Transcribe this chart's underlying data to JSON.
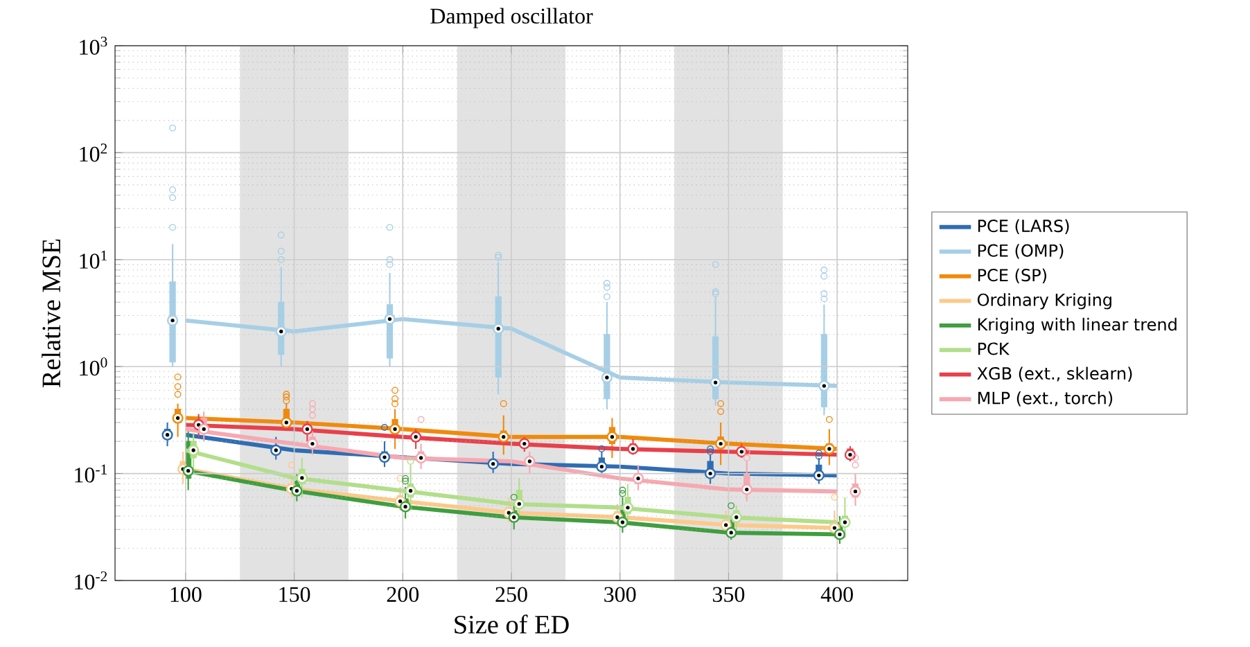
{
  "chart_data": {
    "type": "line",
    "title": "Damped oscillator",
    "xlabel": "Size of ED",
    "ylabel": "Relative MSE",
    "x": [
      100,
      150,
      200,
      250,
      300,
      350,
      400
    ],
    "xlim": [
      67.5,
      432.5
    ],
    "xticks": [
      100,
      150,
      200,
      250,
      300,
      350,
      400
    ],
    "ylim": [
      0.01,
      1000
    ],
    "yticks": [
      {
        "value": 0.01,
        "label": "10$^{-2}$"
      },
      {
        "value": 0.1,
        "label": "10$^{-1}$"
      },
      {
        "value": 1,
        "label": "10$^{0}$"
      },
      {
        "value": 10,
        "label": "10$^{1}$"
      },
      {
        "value": 100,
        "label": "10$^{2}$"
      },
      {
        "value": 1000,
        "label": "10$^{3}$"
      }
    ],
    "log": "y",
    "grid": true,
    "legend": "right",
    "bands": [
      {
        "axis": "x",
        "from": 125,
        "to": 175,
        "color": "#e2e2e2"
      },
      {
        "axis": "x",
        "from": 225,
        "to": 275,
        "color": "#e2e2e2"
      },
      {
        "axis": "x",
        "from": 325,
        "to": 375,
        "color": "#e2e2e2"
      }
    ],
    "series": [
      {
        "name": "PCE (LARS)",
        "color": "#2f6db3",
        "values": [
          0.23,
          0.165,
          0.142,
          0.123,
          0.116,
          0.1,
          0.096
        ]
      },
      {
        "type": "box",
        "color": "#2f6db3",
        "boxes": [
          {
            "low": 0.18,
            "q1": 0.21,
            "median": 0.23,
            "q3": 0.26,
            "high": 0.3
          },
          {
            "low": 0.135,
            "q1": 0.155,
            "median": 0.165,
            "q3": 0.18,
            "high": 0.22
          },
          {
            "low": 0.115,
            "q1": 0.13,
            "median": 0.142,
            "q3": 0.16,
            "high": 0.2,
            "outliers": [
              0.27
            ]
          },
          {
            "low": 0.1,
            "q1": 0.115,
            "median": 0.123,
            "q3": 0.135,
            "high": 0.16
          },
          {
            "low": 0.095,
            "q1": 0.108,
            "median": 0.116,
            "q3": 0.14,
            "high": 0.16,
            "outliers": [
              0.17
            ]
          },
          {
            "low": 0.08,
            "q1": 0.095,
            "median": 0.1,
            "q3": 0.13,
            "high": 0.15,
            "outliers": [
              0.16,
              0.17
            ]
          },
          {
            "low": 0.08,
            "q1": 0.09,
            "median": 0.096,
            "q3": 0.12,
            "high": 0.14,
            "outliers": [
              0.145,
              0.155
            ]
          }
        ]
      },
      {
        "name": "PCE (OMP)",
        "color": "#a6cfe6",
        "values": [
          2.7,
          2.13,
          2.78,
          2.26,
          0.79,
          0.71,
          0.66
        ]
      },
      {
        "type": "box",
        "color": "#a6cfe6",
        "boxes": [
          {
            "low": 1.0,
            "q1": 1.1,
            "median": 2.7,
            "q3": 6.2,
            "high": 14,
            "outliers": [
              20,
              38,
              45,
              170
            ]
          },
          {
            "low": 1.0,
            "q1": 1.3,
            "median": 2.13,
            "q3": 4.0,
            "high": 8.5,
            "outliers": [
              10,
              12,
              17
            ]
          },
          {
            "low": 1.0,
            "q1": 1.2,
            "median": 2.78,
            "q3": 3.8,
            "high": 7.5,
            "outliers": [
              9,
              10,
              20
            ]
          },
          {
            "low": 0.55,
            "q1": 0.8,
            "median": 2.26,
            "q3": 4.5,
            "high": 9.5,
            "outliers": [
              10.5,
              11
            ]
          },
          {
            "low": 0.4,
            "q1": 0.5,
            "median": 0.79,
            "q3": 2.0,
            "high": 4.0,
            "outliers": [
              4.5,
              5.5,
              6
            ]
          },
          {
            "low": 0.43,
            "q1": 0.5,
            "median": 0.71,
            "q3": 1.9,
            "high": 4.5,
            "outliers": [
              4.8,
              5,
              9
            ]
          },
          {
            "low": 0.35,
            "q1": 0.42,
            "median": 0.66,
            "q3": 2.0,
            "high": 3.8,
            "outliers": [
              4.3,
              4.8,
              7,
              8
            ]
          }
        ]
      },
      {
        "name": "PCE (SP)",
        "color": "#f08a0c",
        "values": [
          0.33,
          0.3,
          0.26,
          0.22,
          0.22,
          0.19,
          0.17
        ]
      },
      {
        "type": "box",
        "color": "#f08a0c",
        "boxes": [
          {
            "low": 0.22,
            "q1": 0.3,
            "median": 0.33,
            "q3": 0.4,
            "high": 0.45,
            "outliers": [
              0.55,
              0.65,
              0.8
            ]
          },
          {
            "low": 0.25,
            "q1": 0.28,
            "median": 0.3,
            "q3": 0.4,
            "high": 0.45,
            "outliers": [
              0.48,
              0.52,
              0.55
            ]
          },
          {
            "low": 0.17,
            "q1": 0.22,
            "median": 0.26,
            "q3": 0.32,
            "high": 0.4,
            "outliers": [
              0.45,
              0.5,
              0.6
            ]
          },
          {
            "low": 0.15,
            "q1": 0.19,
            "median": 0.22,
            "q3": 0.25,
            "high": 0.35,
            "outliers": [
              0.45
            ]
          },
          {
            "low": 0.14,
            "q1": 0.19,
            "median": 0.22,
            "q3": 0.27,
            "high": 0.33
          },
          {
            "low": 0.12,
            "q1": 0.17,
            "median": 0.19,
            "q3": 0.22,
            "high": 0.3,
            "outliers": [
              0.38,
              0.45
            ]
          },
          {
            "low": 0.12,
            "q1": 0.15,
            "median": 0.17,
            "q3": 0.19,
            "high": 0.26,
            "outliers": [
              0.32
            ]
          }
        ]
      },
      {
        "name": "Ordinary Kriging",
        "color": "#fdc98a",
        "values": [
          0.11,
          0.072,
          0.055,
          0.043,
          0.039,
          0.033,
          0.031
        ]
      },
      {
        "type": "box",
        "color": "#fdc98a",
        "boxes": [
          {
            "low": 0.08,
            "q1": 0.1,
            "median": 0.11,
            "q3": 0.13,
            "high": 0.16
          },
          {
            "low": 0.06,
            "q1": 0.068,
            "median": 0.072,
            "q3": 0.08,
            "high": 0.1,
            "outliers": [
              0.12
            ]
          },
          {
            "low": 0.045,
            "q1": 0.05,
            "median": 0.055,
            "q3": 0.062,
            "high": 0.075,
            "outliers": [
              0.09
            ]
          },
          {
            "low": 0.035,
            "q1": 0.04,
            "median": 0.043,
            "q3": 0.048,
            "high": 0.06
          },
          {
            "low": 0.032,
            "q1": 0.036,
            "median": 0.039,
            "q3": 0.044,
            "high": 0.052
          },
          {
            "low": 0.027,
            "q1": 0.031,
            "median": 0.033,
            "q3": 0.037,
            "high": 0.045
          },
          {
            "low": 0.025,
            "q1": 0.029,
            "median": 0.031,
            "q3": 0.035,
            "high": 0.045,
            "outliers": [
              0.06
            ]
          }
        ]
      },
      {
        "name": "Kriging with linear trend",
        "color": "#3f9e3f",
        "values": [
          0.106,
          0.069,
          0.049,
          0.039,
          0.035,
          0.028,
          0.027
        ]
      },
      {
        "type": "box",
        "color": "#3f9e3f",
        "boxes": [
          {
            "low": 0.07,
            "q1": 0.09,
            "median": 0.106,
            "q3": 0.2,
            "high": 0.25
          },
          {
            "low": 0.055,
            "q1": 0.062,
            "median": 0.069,
            "q3": 0.085,
            "high": 0.1
          },
          {
            "low": 0.038,
            "q1": 0.045,
            "median": 0.049,
            "q3": 0.058,
            "high": 0.075,
            "outliers": [
              0.085,
              0.09
            ]
          },
          {
            "low": 0.03,
            "q1": 0.036,
            "median": 0.039,
            "q3": 0.045,
            "high": 0.052,
            "outliers": [
              0.06
            ]
          },
          {
            "low": 0.028,
            "q1": 0.032,
            "median": 0.035,
            "q3": 0.05,
            "high": 0.06,
            "outliers": [
              0.065,
              0.07
            ]
          },
          {
            "low": 0.024,
            "q1": 0.026,
            "median": 0.028,
            "q3": 0.035,
            "high": 0.04,
            "outliers": [
              0.05
            ]
          },
          {
            "low": 0.022,
            "q1": 0.025,
            "median": 0.027,
            "q3": 0.035,
            "high": 0.04
          }
        ]
      },
      {
        "name": "PCK",
        "color": "#b2df8a",
        "values": [
          0.165,
          0.091,
          0.069,
          0.052,
          0.048,
          0.039,
          0.035
        ]
      },
      {
        "type": "box",
        "color": "#b2df8a",
        "boxes": [
          {
            "low": 0.1,
            "q1": 0.14,
            "median": 0.165,
            "q3": 0.2,
            "high": 0.24
          },
          {
            "low": 0.06,
            "q1": 0.08,
            "median": 0.091,
            "q3": 0.11,
            "high": 0.14
          },
          {
            "low": 0.045,
            "q1": 0.06,
            "median": 0.069,
            "q3": 0.08,
            "high": 0.12,
            "outliers": [
              0.13
            ]
          },
          {
            "low": 0.04,
            "q1": 0.048,
            "median": 0.052,
            "q3": 0.07,
            "high": 0.09
          },
          {
            "low": 0.035,
            "q1": 0.042,
            "median": 0.048,
            "q3": 0.06,
            "high": 0.08
          },
          {
            "low": 0.03,
            "q1": 0.035,
            "median": 0.039,
            "q3": 0.045,
            "high": 0.05
          },
          {
            "low": 0.025,
            "q1": 0.032,
            "median": 0.035,
            "q3": 0.04,
            "high": 0.06
          }
        ]
      },
      {
        "name": "XGB (ext., sklearn)",
        "color": "#e8404a",
        "values": [
          0.285,
          0.26,
          0.22,
          0.19,
          0.17,
          0.16,
          0.15
        ]
      },
      {
        "type": "box",
        "color": "#e8404a",
        "boxes": [
          {
            "low": 0.22,
            "q1": 0.26,
            "median": 0.285,
            "q3": 0.3,
            "high": 0.36
          },
          {
            "low": 0.2,
            "q1": 0.24,
            "median": 0.26,
            "q3": 0.28,
            "high": 0.31
          },
          {
            "low": 0.17,
            "q1": 0.2,
            "median": 0.22,
            "q3": 0.24,
            "high": 0.26
          },
          {
            "low": 0.16,
            "q1": 0.18,
            "median": 0.19,
            "q3": 0.2,
            "high": 0.22
          },
          {
            "low": 0.15,
            "q1": 0.16,
            "median": 0.17,
            "q3": 0.19,
            "high": 0.21
          },
          {
            "low": 0.14,
            "q1": 0.15,
            "median": 0.16,
            "q3": 0.17,
            "high": 0.19
          },
          {
            "low": 0.13,
            "q1": 0.14,
            "median": 0.15,
            "q3": 0.17,
            "high": 0.18
          }
        ]
      },
      {
        "name": "MLP (ext., torch)",
        "color": "#f7a8b0",
        "values": [
          0.26,
          0.19,
          0.14,
          0.13,
          0.09,
          0.071,
          0.068
        ]
      },
      {
        "type": "box",
        "color": "#f7a8b0",
        "boxes": [
          {
            "low": 0.2,
            "q1": 0.24,
            "median": 0.26,
            "q3": 0.33,
            "high": 0.38
          },
          {
            "low": 0.15,
            "q1": 0.17,
            "median": 0.19,
            "q3": 0.22,
            "high": 0.25,
            "outliers": [
              0.35,
              0.4,
              0.45
            ]
          },
          {
            "low": 0.11,
            "q1": 0.13,
            "median": 0.14,
            "q3": 0.16,
            "high": 0.19,
            "outliers": [
              0.32
            ]
          },
          {
            "low": 0.1,
            "q1": 0.12,
            "median": 0.13,
            "q3": 0.14,
            "high": 0.16
          },
          {
            "low": 0.07,
            "q1": 0.08,
            "median": 0.09,
            "q3": 0.1,
            "high": 0.12
          },
          {
            "low": 0.055,
            "q1": 0.065,
            "median": 0.071,
            "q3": 0.1,
            "high": 0.13,
            "outliers": [
              0.14,
              0.16
            ]
          },
          {
            "low": 0.05,
            "q1": 0.06,
            "median": 0.068,
            "q3": 0.08,
            "high": 0.1,
            "outliers": [
              0.12,
              0.14
            ]
          }
        ]
      }
    ]
  }
}
